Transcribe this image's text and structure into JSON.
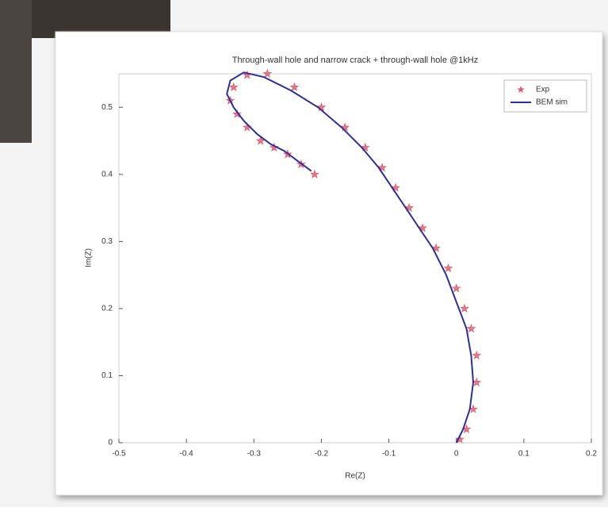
{
  "chart_data": {
    "type": "scatter",
    "title": "Through-wall hole and narrow crack + through-wall hole @1kHz",
    "x_label": "Re(Z)",
    "y_label": "Im(Z)",
    "xlim": [
      -0.5,
      0.2
    ],
    "xticks": [
      -0.5,
      -0.4,
      -0.3,
      -0.2,
      -0.1,
      0,
      0.1,
      0.2
    ],
    "ylim": [
      0,
      0.55
    ],
    "yticks": [
      0,
      0.1,
      0.2,
      0.3,
      0.4,
      0.5
    ],
    "legend": "upper right",
    "series": [
      {
        "name": "Exp",
        "color": "#e05a6a",
        "marker": "star",
        "x": [
          0.005,
          0.015,
          0.025,
          0.03,
          0.03,
          0.022,
          0.012,
          0.0,
          -0.012,
          -0.03,
          -0.05,
          -0.07,
          -0.09,
          -0.11,
          -0.135,
          -0.165,
          -0.2,
          -0.24,
          -0.28,
          -0.31,
          -0.33,
          -0.335,
          -0.325,
          -0.31,
          -0.29,
          -0.27,
          -0.25,
          -0.23,
          -0.21
        ],
        "y": [
          0.005,
          0.02,
          0.05,
          0.09,
          0.13,
          0.17,
          0.2,
          0.23,
          0.26,
          0.29,
          0.32,
          0.35,
          0.38,
          0.41,
          0.44,
          0.47,
          0.5,
          0.53,
          0.55,
          0.548,
          0.53,
          0.51,
          0.49,
          0.47,
          0.45,
          0.44,
          0.43,
          0.415,
          0.4
        ]
      },
      {
        "name": "BEM sim",
        "color": "#2b2f9c",
        "marker": "line",
        "x": [
          0.0,
          0.01,
          0.02,
          0.025,
          0.022,
          0.015,
          0.0,
          -0.015,
          -0.035,
          -0.055,
          -0.075,
          -0.095,
          -0.115,
          -0.14,
          -0.17,
          -0.205,
          -0.245,
          -0.285,
          -0.315,
          -0.335,
          -0.34,
          -0.33,
          -0.315,
          -0.295,
          -0.275,
          -0.255,
          -0.235,
          -0.215
        ],
        "y": [
          0.0,
          0.02,
          0.05,
          0.09,
          0.13,
          0.17,
          0.21,
          0.25,
          0.29,
          0.32,
          0.35,
          0.38,
          0.41,
          0.44,
          0.47,
          0.5,
          0.525,
          0.545,
          0.552,
          0.54,
          0.52,
          0.5,
          0.48,
          0.46,
          0.445,
          0.435,
          0.42,
          0.405
        ]
      }
    ]
  }
}
